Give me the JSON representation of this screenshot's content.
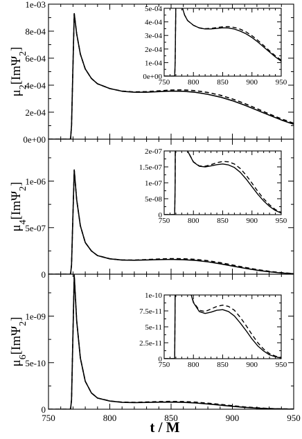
{
  "figure": {
    "xlabel": "t / M",
    "x_ticks": [
      "750",
      "800",
      "850",
      "900",
      "950"
    ]
  },
  "chart_data": [
    {
      "type": "line",
      "id": "mu2",
      "ylabel": "μ2[ImΨ2]",
      "ylabel_parts": {
        "mu": "μ",
        "mu_sub": "2",
        "pre": "[ImΨ",
        "psi_sub": "2",
        "post": "]"
      },
      "xlim": [
        750,
        950
      ],
      "ylim": [
        0,
        0.001
      ],
      "y_ticks": [
        {
          "v": 0,
          "label": "0e+00"
        },
        {
          "v": 0.0002,
          "label": "2e-04"
        },
        {
          "v": 0.0004,
          "label": "4e-04"
        },
        {
          "v": 0.0006,
          "label": "6e-04"
        },
        {
          "v": 0.0008,
          "label": "8e-04"
        },
        {
          "v": 0.001,
          "label": "1e-03"
        }
      ],
      "grid": false,
      "series": [
        {
          "style": "solid",
          "x": [
            750,
            768,
            768.8,
            771,
            773,
            776,
            780,
            785,
            790,
            800,
            810,
            820,
            830,
            840,
            850,
            860,
            870,
            880,
            890,
            900,
            910,
            920,
            930,
            940,
            950
          ],
          "y": [
            0,
            0,
            0.0001,
            0.00093,
            0.00078,
            0.00063,
            0.00052,
            0.00045,
            0.00041,
            0.000375,
            0.000355,
            0.000348,
            0.000348,
            0.000352,
            0.000356,
            0.000355,
            0.000347,
            0.000332,
            0.000312,
            0.000285,
            0.000252,
            0.000215,
            0.000178,
            0.000142,
            0.00011
          ]
        },
        {
          "style": "dashed",
          "x": [
            750,
            768,
            768.8,
            771,
            773,
            776,
            780,
            785,
            790,
            800,
            810,
            820,
            830,
            840,
            850,
            860,
            870,
            880,
            890,
            900,
            910,
            920,
            930,
            940,
            950
          ],
          "y": [
            0,
            0,
            0.0001,
            0.00093,
            0.00078,
            0.00063,
            0.00052,
            0.00045,
            0.00041,
            0.000375,
            0.000356,
            0.00035,
            0.000352,
            0.000358,
            0.000364,
            0.000365,
            0.000359,
            0.000346,
            0.000326,
            0.000298,
            0.000264,
            0.000226,
            0.000187,
            0.00015,
            0.000118
          ]
        }
      ],
      "inset": {
        "xlim": [
          750,
          950
        ],
        "ylim": [
          0,
          0.0005
        ],
        "x_ticks": [
          "750",
          "800",
          "850",
          "900",
          "950"
        ],
        "y_ticks": [
          {
            "v": 0,
            "label": "0e+00"
          },
          {
            "v": 0.0001,
            "label": "1e-04"
          },
          {
            "v": 0.0002,
            "label": "2e-04"
          },
          {
            "v": 0.0003,
            "label": "3e-04"
          },
          {
            "v": 0.0004,
            "label": "4e-04"
          },
          {
            "v": 0.0005,
            "label": "5e-04"
          }
        ]
      }
    },
    {
      "type": "line",
      "id": "mu4",
      "ylabel": "μ4[ImΨ2]",
      "ylabel_parts": {
        "mu": "μ",
        "mu_sub": "4",
        "pre": "[ImΨ",
        "psi_sub": "2",
        "post": "]"
      },
      "xlim": [
        750,
        950
      ],
      "ylim": [
        0,
        1.45e-06
      ],
      "y_ticks": [
        {
          "v": 0,
          "label": "0"
        },
        {
          "v": 5e-07,
          "label": "5e-07"
        },
        {
          "v": 1e-06,
          "label": "1e-06"
        }
      ],
      "grid": false,
      "series": [
        {
          "style": "solid",
          "x": [
            750,
            768,
            768.8,
            771,
            773,
            776,
            780,
            785,
            790,
            800,
            810,
            820,
            830,
            840,
            850,
            860,
            870,
            880,
            890,
            900,
            910,
            920,
            930,
            940,
            950
          ],
          "y": [
            0,
            0,
            1e-07,
            1.12e-06,
            8e-07,
            5.2e-07,
            3.4e-07,
            2.5e-07,
            2e-07,
            1.65e-07,
            1.52e-07,
            1.5e-07,
            1.53e-07,
            1.57e-07,
            1.59e-07,
            1.56e-07,
            1.48e-07,
            1.33e-07,
            1.12e-07,
            8.8e-08,
            6.4e-08,
            4.3e-08,
            2.6e-08,
            1.3e-08,
            5e-09
          ]
        },
        {
          "style": "dashed",
          "x": [
            750,
            768,
            768.8,
            771,
            773,
            776,
            780,
            785,
            790,
            800,
            810,
            820,
            830,
            840,
            850,
            860,
            870,
            880,
            890,
            900,
            910,
            920,
            930,
            940,
            950
          ],
          "y": [
            0,
            0,
            1e-07,
            1.12e-06,
            8e-07,
            5.2e-07,
            3.4e-07,
            2.5e-07,
            2e-07,
            1.66e-07,
            1.53e-07,
            1.52e-07,
            1.57e-07,
            1.63e-07,
            1.67e-07,
            1.66e-07,
            1.59e-07,
            1.45e-07,
            1.24e-07,
            9.9e-08,
            7.3e-08,
            5e-08,
            3.1e-08,
            1.6e-08,
            7e-09
          ]
        }
      ],
      "inset": {
        "xlim": [
          750,
          950
        ],
        "ylim": [
          0,
          2e-07
        ],
        "x_ticks": [
          "750",
          "800",
          "850",
          "900",
          "950"
        ],
        "y_ticks": [
          {
            "v": 0,
            "label": "0"
          },
          {
            "v": 5e-08,
            "label": "5e-08"
          },
          {
            "v": 1e-07,
            "label": "1e-07"
          },
          {
            "v": 1.5e-07,
            "label": "1.5e-07"
          },
          {
            "v": 2e-07,
            "label": "2e-07"
          }
        ]
      }
    },
    {
      "type": "line",
      "id": "mu6",
      "ylabel": "μ6[ImΨ2]",
      "ylabel_parts": {
        "mu": "μ",
        "mu_sub": "6",
        "pre": "[ImΨ",
        "psi_sub": "2",
        "post": "]"
      },
      "xlim": [
        750,
        950
      ],
      "ylim": [
        0,
        1.45e-09
      ],
      "y_ticks": [
        {
          "v": 0,
          "label": "0"
        },
        {
          "v": 5e-10,
          "label": "5e-10"
        },
        {
          "v": 1e-09,
          "label": "1e-09"
        }
      ],
      "grid": false,
      "series": [
        {
          "style": "solid",
          "x": [
            750,
            768,
            768.8,
            771,
            773,
            776,
            780,
            785,
            790,
            800,
            810,
            820,
            830,
            840,
            850,
            860,
            870,
            880,
            890,
            900,
            910,
            920,
            930,
            940,
            950
          ],
          "y": [
            0,
            0,
            1e-10,
            1.44e-09,
            9.5e-10,
            5.5e-10,
            3e-10,
            1.75e-10,
            1.2e-10,
            8.8e-11,
            7.4e-11,
            7.1e-11,
            7.3e-11,
            7.6e-11,
            7.7e-11,
            7.4e-11,
            6.7e-11,
            5.6e-11,
            4.4e-11,
            3.1e-11,
            2e-11,
            1.2e-11,
            6e-12,
            3e-12,
            1e-12
          ]
        },
        {
          "style": "dashed",
          "x": [
            750,
            768,
            768.8,
            771,
            773,
            776,
            780,
            785,
            790,
            800,
            810,
            820,
            830,
            840,
            850,
            860,
            870,
            880,
            890,
            900,
            910,
            920,
            930,
            940,
            950
          ],
          "y": [
            0,
            0,
            1e-10,
            1.44e-09,
            9.5e-10,
            5.5e-10,
            3e-10,
            1.75e-10,
            1.2e-10,
            8.9e-11,
            7.6e-11,
            7.4e-11,
            7.8e-11,
            8.2e-11,
            8.4e-11,
            8.2e-11,
            7.6e-11,
            6.5e-11,
            5.2e-11,
            3.8e-11,
            2.5e-11,
            1.5e-11,
            8e-12,
            4e-12,
            2e-12
          ]
        }
      ],
      "inset": {
        "xlim": [
          750,
          950
        ],
        "ylim": [
          0,
          1e-10
        ],
        "x_ticks": [
          "750",
          "800",
          "850",
          "900",
          "950"
        ],
        "y_ticks": [
          {
            "v": 0,
            "label": "0"
          },
          {
            "v": 2.5e-11,
            "label": "2.5e-11"
          },
          {
            "v": 5e-11,
            "label": "5e-11"
          },
          {
            "v": 7.5e-11,
            "label": "7.5e-11"
          },
          {
            "v": 1e-10,
            "label": "1e-10"
          }
        ]
      }
    }
  ]
}
